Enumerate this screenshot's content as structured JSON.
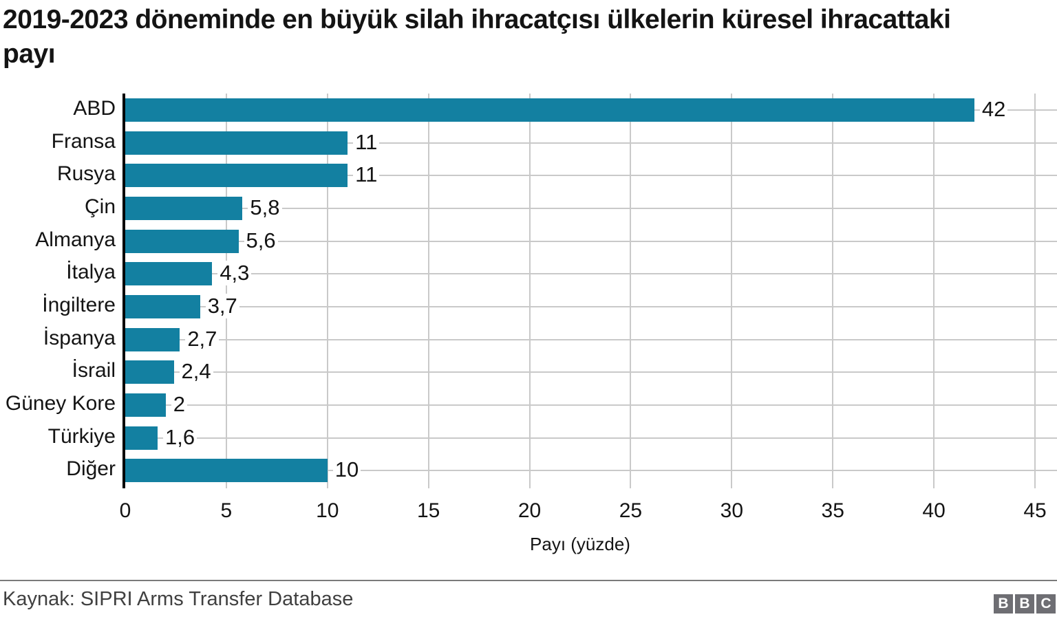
{
  "title": "2019-2023 döneminde en büyük silah ihracatçısı ülkelerin küresel ihracattaki payı",
  "source": "Kaynak: SIPRI Arms Transfer Database",
  "logo": {
    "letters": [
      "B",
      "B",
      "C"
    ]
  },
  "chart_data": {
    "type": "bar",
    "orientation": "horizontal",
    "title": "2019-2023 döneminde en büyük silah ihracatçısı ülkelerin küresel ihracattaki payı",
    "categories": [
      "ABD",
      "Fransa",
      "Rusya",
      "Çin",
      "Almanya",
      "İtalya",
      "İngiltere",
      "İspanya",
      "İsrail",
      "Güney Kore",
      "Türkiye",
      "Diğer"
    ],
    "values": [
      42,
      11,
      11,
      5.8,
      5.6,
      4.3,
      3.7,
      2.7,
      2.4,
      2,
      1.6,
      10
    ],
    "value_labels": [
      "42",
      "11",
      "11",
      "5,8",
      "5,6",
      "4,3",
      "3,7",
      "2,7",
      "2,4",
      "2",
      "1,6",
      "10"
    ],
    "xlabel": "Payı (yüzde)",
    "xlim": [
      0,
      45
    ],
    "xticks": [
      0,
      5,
      10,
      15,
      20,
      25,
      30,
      35,
      40,
      45
    ],
    "xtick_labels": [
      "0",
      "5",
      "10",
      "15",
      "20",
      "25",
      "30",
      "35",
      "40",
      "45"
    ],
    "grid": true,
    "legend": false,
    "bar_color": "#1380a1",
    "grid_color": "#c9c9c9",
    "axis_color": "#000000"
  }
}
